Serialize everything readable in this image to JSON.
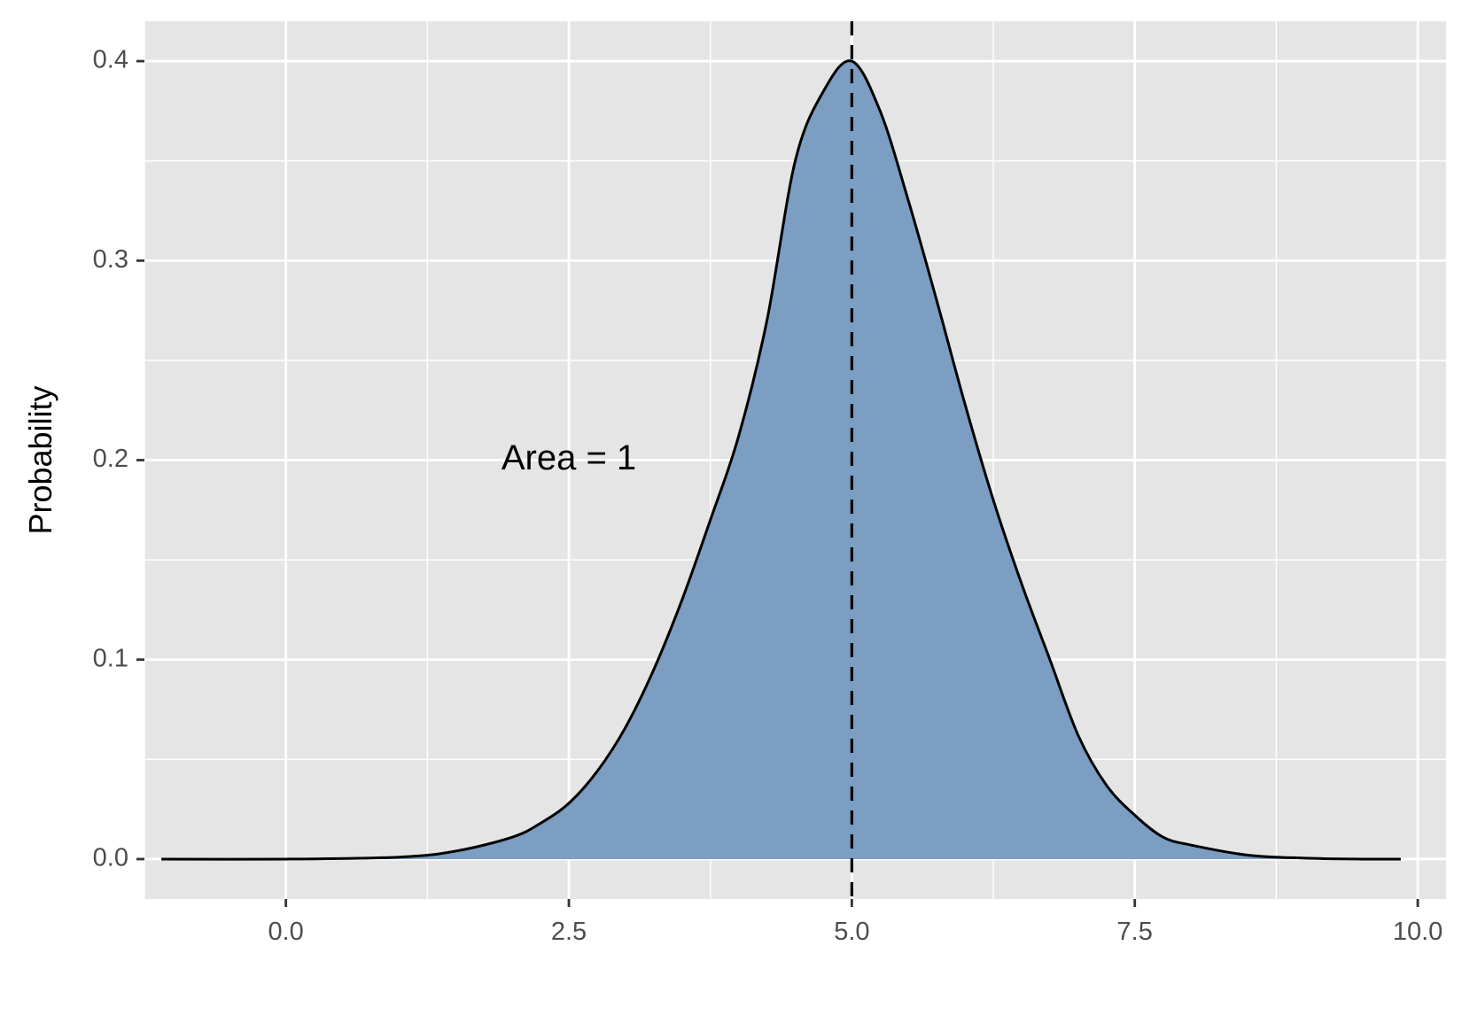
{
  "chart_data": {
    "type": "area",
    "title": "",
    "xlabel": "",
    "ylabel": "Probability",
    "xlim": [
      -1.25,
      10.25
    ],
    "ylim": [
      -0.02,
      0.42
    ],
    "x_ticks": [
      0.0,
      2.5,
      5.0,
      7.5,
      10.0
    ],
    "x_tick_labels": [
      "0.0",
      "2.5",
      "5.0",
      "7.5",
      "10.0"
    ],
    "y_ticks": [
      0.0,
      0.1,
      0.2,
      0.3,
      0.4
    ],
    "y_tick_labels": [
      "0.0",
      "0.1",
      "0.2",
      "0.3",
      "0.4"
    ],
    "grid": true,
    "series": [
      {
        "x": [
          -1.1,
          0,
          1,
          1.5,
          2,
          2.25,
          2.5,
          2.75,
          3,
          3.25,
          3.5,
          3.75,
          4,
          4.25,
          4.5,
          4.75,
          5,
          5.25,
          5.5,
          5.75,
          6,
          6.25,
          6.5,
          6.75,
          7,
          7.25,
          7.5,
          7.75,
          8,
          8.5,
          9,
          9.5,
          9.85
        ],
        "y": [
          0.0,
          0.0,
          0.001,
          0.004,
          0.011,
          0.018,
          0.028,
          0.044,
          0.066,
          0.095,
          0.13,
          0.17,
          0.212,
          0.27,
          0.35,
          0.385,
          0.4,
          0.375,
          0.33,
          0.28,
          0.228,
          0.18,
          0.138,
          0.1,
          0.062,
          0.037,
          0.022,
          0.011,
          0.007,
          0.002,
          0.0005,
          0.0,
          0.0
        ],
        "fill_color": "#7b9ec2",
        "line_color": "#000000"
      }
    ],
    "reference_line": {
      "x": 5.0,
      "style": "dashed",
      "color": "#000000"
    },
    "annotation": {
      "text": "Area = 1",
      "x": 2.5,
      "y": 0.2
    },
    "panel_color": "#e5e5e5",
    "grid_color": "#ffffff"
  }
}
